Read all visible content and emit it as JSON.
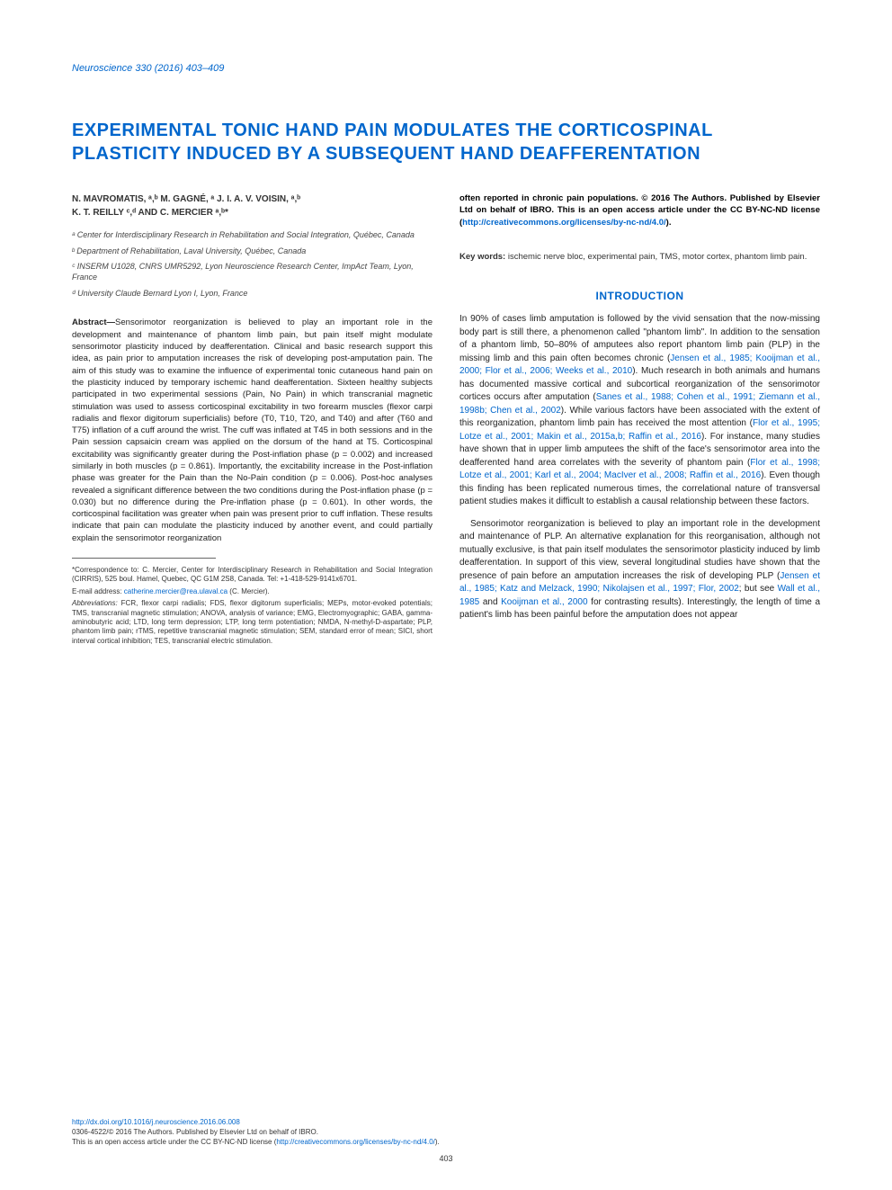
{
  "journal_ref": "Neuroscience 330 (2016) 403–409",
  "title": "EXPERIMENTAL TONIC HAND PAIN MODULATES THE CORTICOSPINAL PLASTICITY INDUCED BY A SUBSEQUENT HAND DEAFFERENTATION",
  "authors_line1": "N. MAVROMATIS, ᵃ,ᵇ M. GAGNÉ, ᵃ J. I. A. V. VOISIN, ᵃ,ᵇ",
  "authors_line2": "K. T. REILLY ᶜ,ᵈ AND C. MERCIER ᵃ,ᵇ*",
  "affiliations": {
    "a": "ᵃ Center for Interdisciplinary Research in Rehabilitation and Social Integration, Québec, Canada",
    "b": "ᵇ Department of Rehabilitation, Laval University, Québec, Canada",
    "c": "ᶜ INSERM U1028, CNRS UMR5292, Lyon Neuroscience Research Center, ImpAct Team, Lyon, France",
    "d": "ᵈ University Claude Bernard Lyon I, Lyon, France"
  },
  "abstract_label": "Abstract—",
  "abstract": "Sensorimotor reorganization is believed to play an important role in the development and maintenance of phantom limb pain, but pain itself might modulate sensorimotor plasticity induced by deafferentation. Clinical and basic research support this idea, as pain prior to amputation increases the risk of developing post-amputation pain. The aim of this study was to examine the influence of experimental tonic cutaneous hand pain on the plasticity induced by temporary ischemic hand deafferentation. Sixteen healthy subjects participated in two experimental sessions (Pain, No Pain) in which transcranial magnetic stimulation was used to assess corticospinal excitability in two forearm muscles (flexor carpi radialis and flexor digitorum superficialis) before (T0, T10, T20, and T40) and after (T60 and T75) inflation of a cuff around the wrist. The cuff was inflated at T45 in both sessions and in the Pain session capsaicin cream was applied on the dorsum of the hand at T5. Corticospinal excitability was significantly greater during the Post-inflation phase (p = 0.002) and increased similarly in both muscles (p = 0.861). Importantly, the excitability increase in the Post-inflation phase was greater for the Pain than the No-Pain condition (p = 0.006). Post-hoc analyses revealed a significant difference between the two conditions during the Post-inflation phase (p = 0.030) but no difference during the Pre-inflation phase (p = 0.601). In other words, the corticospinal facilitation was greater when pain was present prior to cuff inflation. These results indicate that pain can modulate the plasticity induced by another event, and could partially explain the sensorimotor reorganization",
  "copyright": "often reported in chronic pain populations. © 2016 The Authors. Published by Elsevier Ltd on behalf of IBRO. This is an open access article under the CC BY-NC-ND license (",
  "license_url": "http://creativecommons.org/licenses/by-nc-nd/4.0/",
  "copyright_close": ").",
  "keywords_label": "Key words: ",
  "keywords": "ischemic nerve bloc, experimental pain, TMS, motor cortex, phantom limb pain.",
  "section_heading": "INTRODUCTION",
  "intro_p1_a": "In 90% of cases limb amputation is followed by the vivid sensation that the now-missing body part is still there, a phenomenon called \"phantom limb\". In addition to the sensation of a phantom limb, 50–80% of amputees also report phantom limb pain (PLP) in the missing limb and this pain often becomes chronic (",
  "intro_cite1": "Jensen et al., 1985; Kooijman et al., 2000; Flor et al., 2006; Weeks et al., 2010",
  "intro_p1_b": "). Much research in both animals and humans has documented massive cortical and subcortical reorganization of the sensorimotor cortices occurs after amputation (",
  "intro_cite2": "Sanes et al., 1988; Cohen et al., 1991; Ziemann et al., 1998b; Chen et al., 2002",
  "intro_p1_c": "). While various factors have been associated with the extent of this reorganization, phantom limb pain has received the most attention (",
  "intro_cite3": "Flor et al., 1995; Lotze et al., 2001; Makin et al., 2015a,b; Raffin et al., 2016",
  "intro_p1_d": "). For instance, many studies have shown that in upper limb amputees the shift of the face's sensorimotor area into the deafferented hand area correlates with the severity of phantom pain (",
  "intro_cite4": "Flor et al., 1998; Lotze et al., 2001; Karl et al., 2004; MacIver et al., 2008; Raffin et al., 2016",
  "intro_p1_e": "). Even though this finding has been replicated numerous times, the correlational nature of transversal patient studies makes it difficult to establish a causal relationship between these factors.",
  "intro_p2_a": "Sensorimotor reorganization is believed to play an important role in the development and maintenance of PLP. An alternative explanation for this reorganisation, although not mutually exclusive, is that pain itself modulates the sensorimotor plasticity induced by limb deafferentation. In support of this view, several longitudinal studies have shown that the presence of pain before an amputation increases the risk of developing PLP (",
  "intro_cite5": "Jensen et al., 1985; Katz and Melzack, 1990; Nikolajsen et al., 1997; Flor, 2002",
  "intro_p2_b": "; but see ",
  "intro_cite6": "Wall et al., 1985",
  "intro_p2_c": " and ",
  "intro_cite7": "Kooijman et al., 2000",
  "intro_p2_d": " for contrasting results). Interestingly, the length of time a patient's limb has been painful before the amputation does not appear",
  "correspondence": "*Correspondence to: C. Mercier, Center for Interdisciplinary Research in Rehabilitation and Social Integration (CIRRIS), 525 boul. Hamel, Quebec, QC G1M 2S8, Canada. Tel: +1-418-529-9141x6701.",
  "email_label": "E-mail address: ",
  "email": "catherine.mercier@rea.ulaval.ca",
  "email_suffix": " (C. Mercier).",
  "abbrev_label": "Abbreviations: ",
  "abbreviations": "FCR, flexor carpi radialis; FDS, flexor digitorum superficialis; MEPs, motor-evoked potentials; TMS, transcranial magnetic stimulation; ANOVA, analysis of variance; EMG, Electromyographic; GABA, gamma-aminobutyric acid; LTD, long term depression; LTP, long term potentiation; NMDA, N-methyl-D-aspartate; PLP, phantom limb pain; rTMS, repetitive transcranial magnetic stimulation; SEM, standard error of mean; SICI, short interval cortical inhibition; TES, transcranial electric stimulation.",
  "doi": "http://dx.doi.org/10.1016/j.neuroscience.2016.06.008",
  "footer_copyright": "0306-4522/© 2016 The Authors. Published by Elsevier Ltd on behalf of IBRO.",
  "footer_license_a": "This is an open access article under the CC BY-NC-ND license (",
  "footer_license_url": "http://creativecommons.org/licenses/by-nc-nd/4.0/",
  "footer_license_b": ").",
  "page_number": "403",
  "colors": {
    "link": "#0066cc",
    "text": "#222222",
    "background": "#ffffff"
  }
}
